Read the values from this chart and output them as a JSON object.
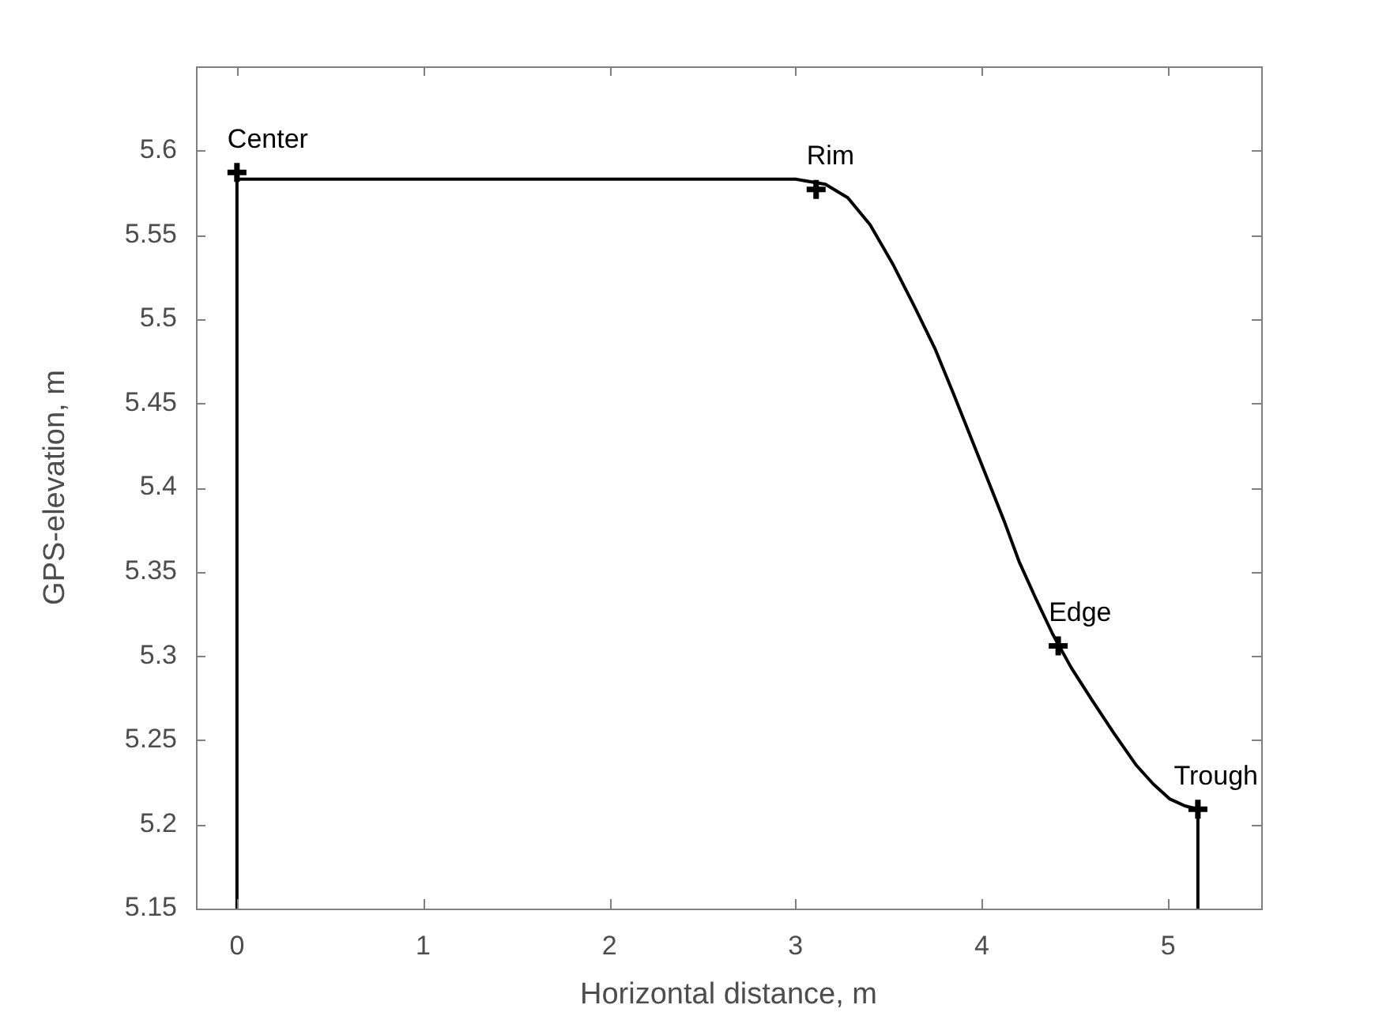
{
  "chart_data": {
    "type": "line",
    "xlabel": "Horizontal distance, m",
    "ylabel": "GPS-elevation, m",
    "xlim": [
      -0.22,
      5.5
    ],
    "xticks": [
      0,
      1,
      2,
      3,
      4,
      5
    ],
    "ylim": [
      5.15,
      5.65
    ],
    "yticks": [
      5.15,
      5.2,
      5.25,
      5.3,
      5.35,
      5.4,
      5.45,
      5.5,
      5.55,
      5.6
    ],
    "grid": false,
    "legend": false,
    "series": [
      {
        "type": "line",
        "color": "#000000",
        "marker": "none",
        "x": [
          0,
          0,
          1,
          2,
          3,
          3.16,
          3.28,
          3.4,
          3.52,
          3.64,
          3.75,
          3.85,
          3.94,
          4.03,
          4.12,
          4.2,
          4.29,
          4.38,
          4.48,
          4.59,
          4.71,
          4.83,
          4.92,
          5.01,
          5.09,
          5.16,
          5.16
        ],
        "values": [
          5.15,
          5.583,
          5.583,
          5.583,
          5.583,
          5.58,
          5.572,
          5.556,
          5.533,
          5.507,
          5.482,
          5.455,
          5.43,
          5.405,
          5.38,
          5.356,
          5.334,
          5.313,
          5.293,
          5.274,
          5.254,
          5.235,
          5.224,
          5.215,
          5.211,
          5.209,
          5.15
        ]
      },
      {
        "type": "scatter",
        "color": "#000000",
        "marker": "cross",
        "x": [
          0,
          3.11,
          4.41,
          5.16
        ],
        "values": [
          5.587,
          5.577,
          5.306,
          5.209
        ]
      }
    ],
    "annotations": [
      {
        "text": "Center",
        "x": 0,
        "y": 5.587
      },
      {
        "text": "Rim",
        "x": 3.11,
        "y": 5.577
      },
      {
        "text": "Edge",
        "x": 4.41,
        "y": 5.306
      },
      {
        "text": "Trough",
        "x": 5.16,
        "y": 5.209
      }
    ]
  }
}
